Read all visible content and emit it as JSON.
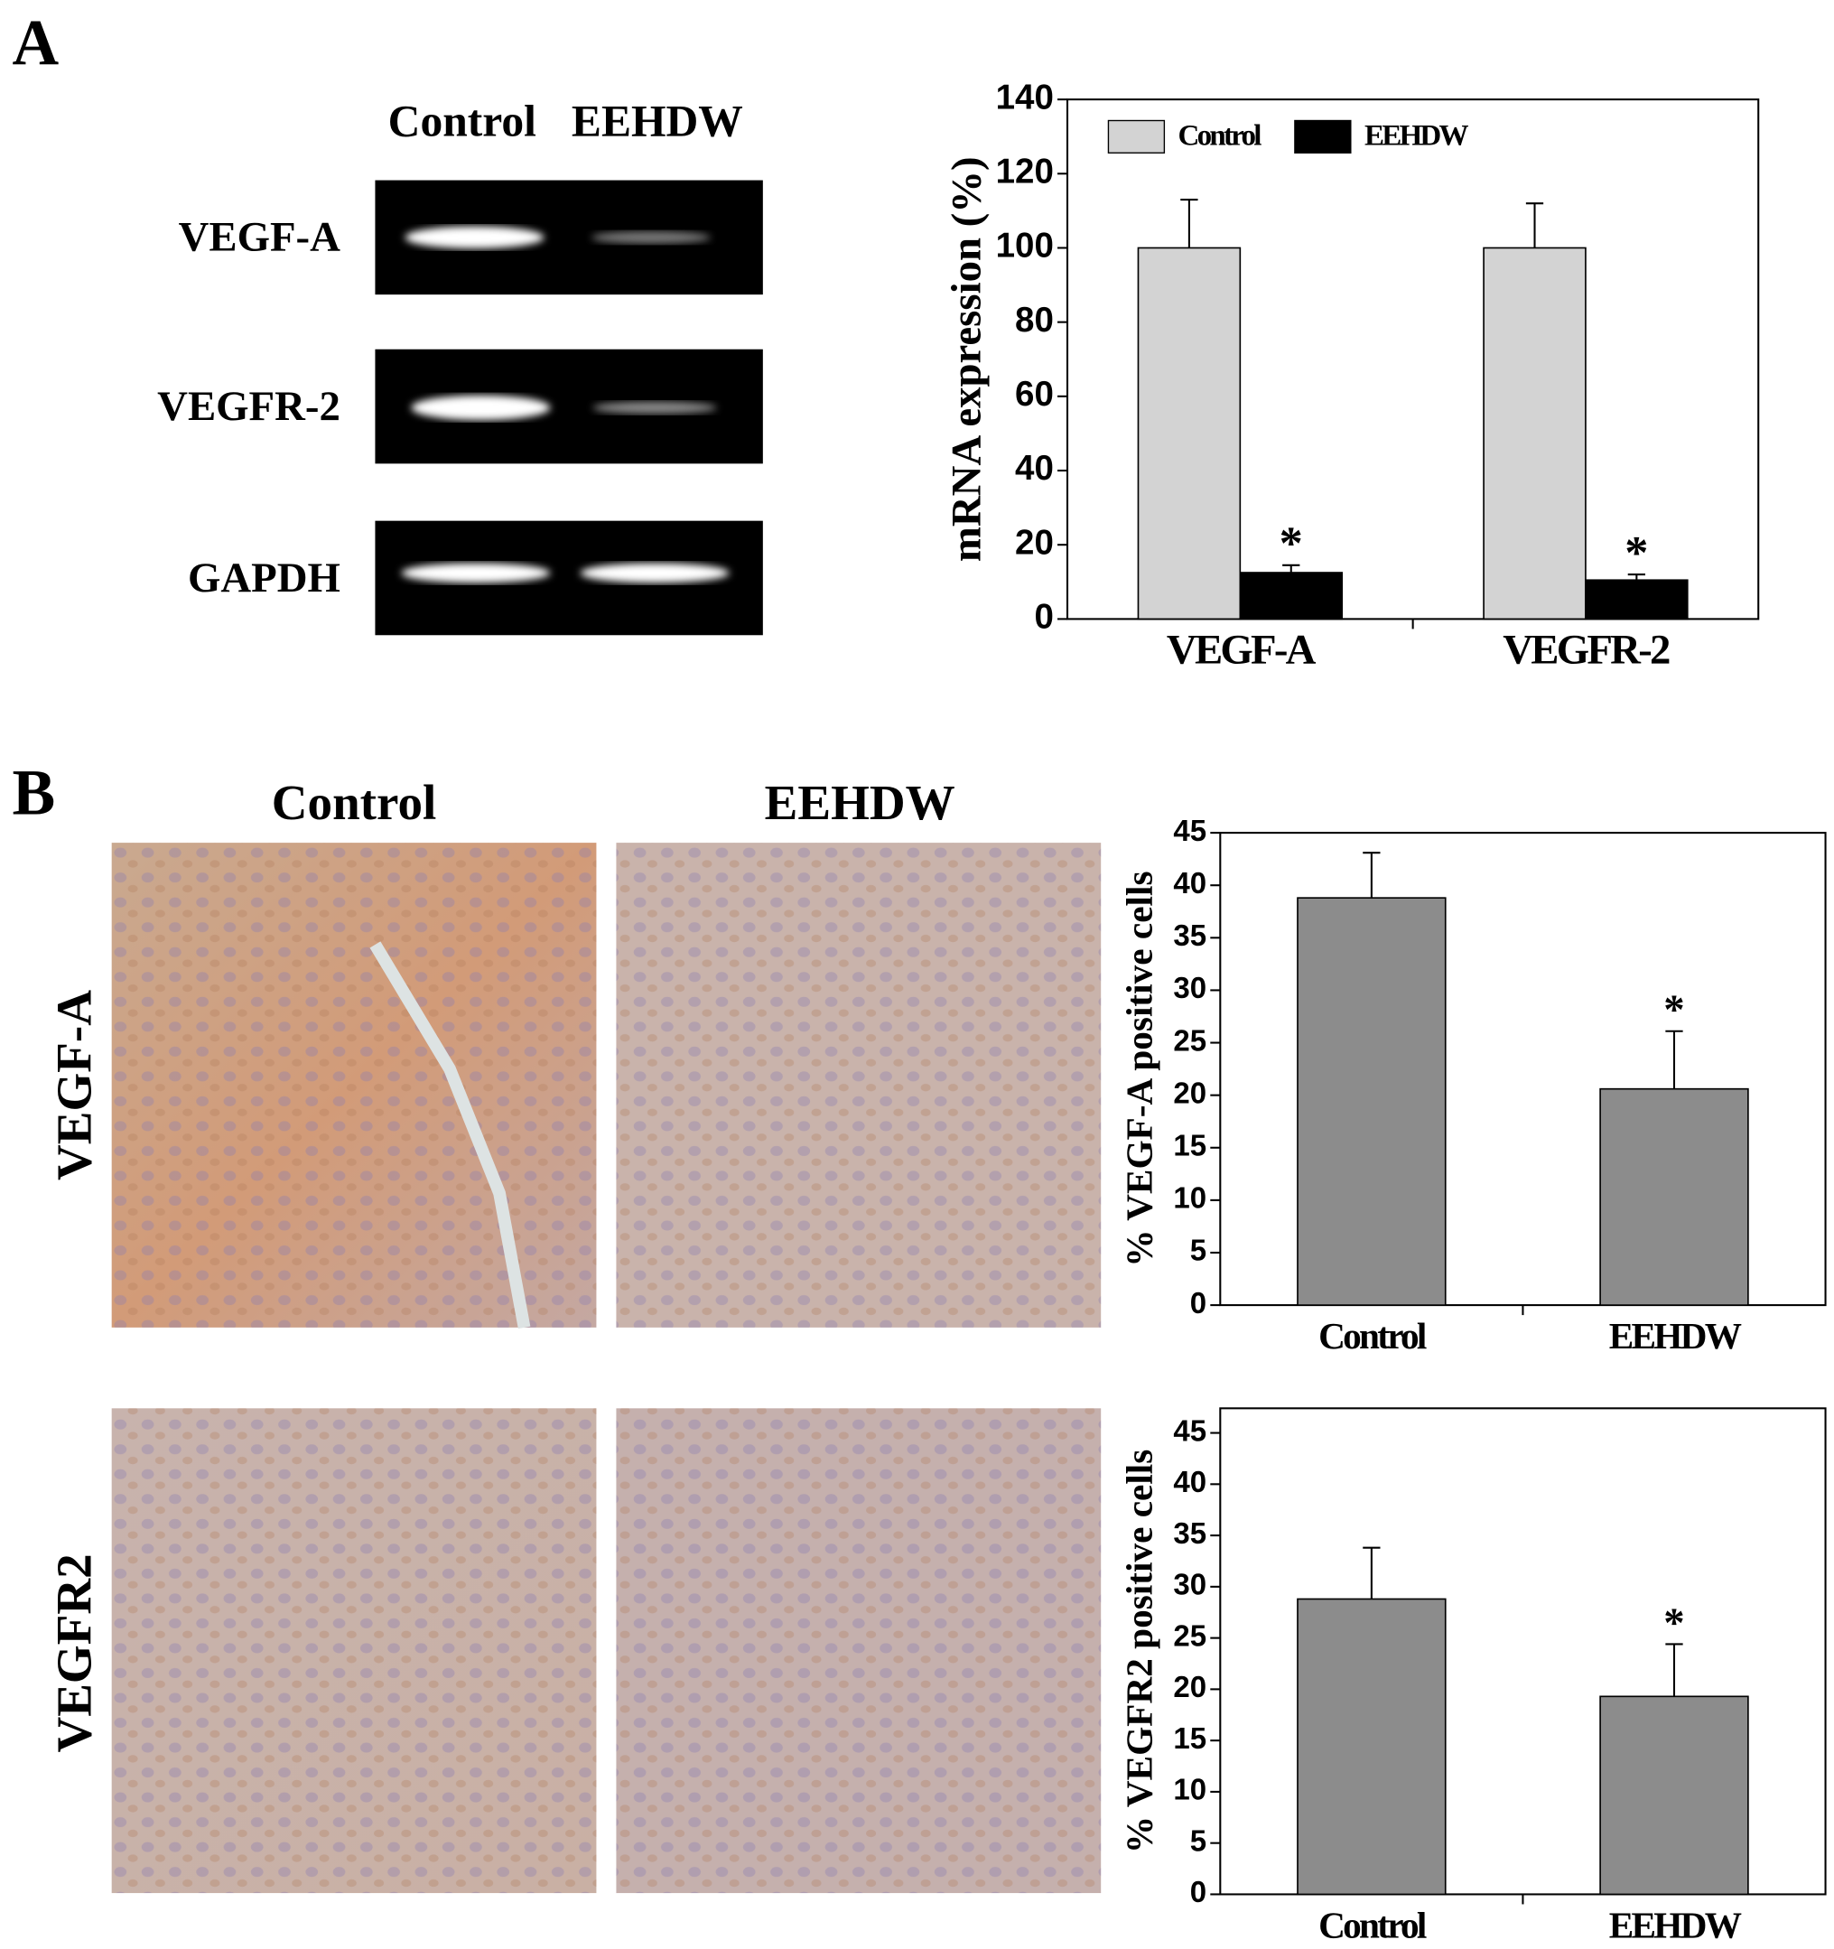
{
  "panel_labels": [
    "A",
    "B"
  ],
  "gel": {
    "lanes": [
      "Control",
      "EEHDW"
    ],
    "rows": [
      "VEGF-A",
      "VEGFR-2",
      "GAPDH"
    ]
  },
  "histology": {
    "columns": [
      "Control",
      "EEHDW"
    ],
    "rows": [
      "VEGF-A",
      "VEGFR2"
    ]
  },
  "chart_data": [
    {
      "type": "bar",
      "ylabel": "mRNA expression (%)",
      "categories": [
        "VEGF-A",
        "VEGFR-2"
      ],
      "series": [
        {
          "name": "Control",
          "color": "#d3d3d3",
          "values": [
            100,
            100
          ],
          "errors": [
            13,
            12
          ]
        },
        {
          "name": "EEHDW",
          "color": "#000000",
          "values": [
            12.5,
            10.5
          ],
          "errors": [
            2,
            1.5
          ],
          "markers": [
            "*",
            "*"
          ]
        }
      ],
      "ylim": [
        0,
        140
      ],
      "yticks": [
        0,
        20,
        40,
        60,
        80,
        100,
        120,
        140
      ],
      "legend": "upper left"
    },
    {
      "type": "bar",
      "ylabel": "% VEGF-A positive cells",
      "categories": [
        "Control",
        "EEHDW"
      ],
      "values": [
        38.8,
        20.6
      ],
      "errors": [
        4.3,
        5.5
      ],
      "markers": [
        null,
        "*"
      ],
      "color": "#8c8c8c",
      "ylim": [
        0,
        45
      ],
      "yticks": [
        0,
        5,
        10,
        15,
        20,
        25,
        30,
        35,
        40,
        45
      ]
    },
    {
      "type": "bar",
      "ylabel": "% VEGFR2 positive cells",
      "categories": [
        "Control",
        "EEHDW"
      ],
      "values": [
        28.8,
        19.3
      ],
      "errors": [
        5,
        5.1
      ],
      "markers": [
        null,
        "*"
      ],
      "color": "#8c8c8c",
      "ylim": [
        0,
        47.4
      ],
      "yticks": [
        0,
        5,
        10,
        15,
        20,
        25,
        30,
        35,
        40,
        45
      ]
    }
  ]
}
